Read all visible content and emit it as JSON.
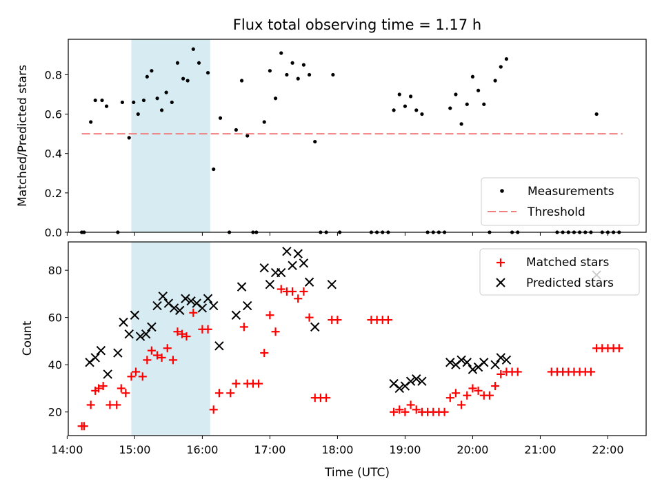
{
  "chart_data": [
    {
      "type": "scatter",
      "title": "Flux total observing time = 1.17 h",
      "ylabel": "Matched/Predicted stars",
      "xlabel": "",
      "xlim": [
        "14:01",
        "22:34"
      ],
      "ylim": [
        0,
        0.98
      ],
      "grid": false,
      "legend_position": "lower-right",
      "x_ticks": [
        "14:00",
        "15:00",
        "16:00",
        "17:00",
        "18:00",
        "19:00",
        "20:00",
        "21:00",
        "22:00"
      ],
      "y_ticks": [
        "0.0",
        "0.2",
        "0.4",
        "0.6",
        "0.8"
      ],
      "shaded_span": [
        "14:57",
        "16:07"
      ],
      "series": [
        {
          "name": "Measurements",
          "marker": "dot",
          "color": "#000000",
          "points": [
            [
              "14:13",
              0
            ],
            [
              "14:15",
              0
            ],
            [
              "14:21",
              0.56
            ],
            [
              "14:25",
              0.67
            ],
            [
              "14:31",
              0.67
            ],
            [
              "14:35",
              0.64
            ],
            [
              "14:45",
              0
            ],
            [
              "14:49",
              0.66
            ],
            [
              "14:55",
              0.48
            ],
            [
              "14:59",
              0.66
            ],
            [
              "15:03",
              0.6
            ],
            [
              "15:08",
              0.67
            ],
            [
              "15:11",
              0.79
            ],
            [
              "15:15",
              0.82
            ],
            [
              "15:20",
              0.68
            ],
            [
              "15:24",
              0.62
            ],
            [
              "15:28",
              0.71
            ],
            [
              "15:33",
              0.66
            ],
            [
              "15:38",
              0.86
            ],
            [
              "15:43",
              0.78
            ],
            [
              "15:47",
              0.77
            ],
            [
              "15:52",
              0.93
            ],
            [
              "15:57",
              0.86
            ],
            [
              "16:05",
              0.81
            ],
            [
              "16:10",
              0.32
            ],
            [
              "16:16",
              0.58
            ],
            [
              "16:24",
              0
            ],
            [
              "16:30",
              0.52
            ],
            [
              "16:35",
              0.77
            ],
            [
              "16:40",
              0.49
            ],
            [
              "16:45",
              0
            ],
            [
              "16:48",
              0
            ],
            [
              "16:55",
              0.56
            ],
            [
              "17:00",
              0.82
            ],
            [
              "17:05",
              0.68
            ],
            [
              "17:10",
              0.91
            ],
            [
              "17:15",
              0.8
            ],
            [
              "17:20",
              0.86
            ],
            [
              "17:25",
              0.78
            ],
            [
              "17:30",
              0.85
            ],
            [
              "17:35",
              0.8
            ],
            [
              "17:40",
              0.46
            ],
            [
              "17:45",
              0
            ],
            [
              "17:50",
              0
            ],
            [
              "17:56",
              0.8
            ],
            [
              "18:02",
              0
            ],
            [
              "18:30",
              0
            ],
            [
              "18:35",
              0
            ],
            [
              "18:40",
              0
            ],
            [
              "18:45",
              0
            ],
            [
              "18:50",
              0.62
            ],
            [
              "18:55",
              0.7
            ],
            [
              "19:00",
              0.64
            ],
            [
              "19:05",
              0.69
            ],
            [
              "19:10",
              0.62
            ],
            [
              "19:15",
              0.6
            ],
            [
              "19:20",
              0
            ],
            [
              "19:25",
              0
            ],
            [
              "19:30",
              0
            ],
            [
              "19:35",
              0
            ],
            [
              "19:40",
              0.63
            ],
            [
              "19:45",
              0.7
            ],
            [
              "19:50",
              0.55
            ],
            [
              "19:55",
              0.65
            ],
            [
              "20:00",
              0.79
            ],
            [
              "20:05",
              0.72
            ],
            [
              "20:10",
              0.65
            ],
            [
              "20:15",
              0
            ],
            [
              "20:20",
              0.77
            ],
            [
              "20:25",
              0.84
            ],
            [
              "20:30",
              0.88
            ],
            [
              "20:35",
              0
            ],
            [
              "20:40",
              0
            ],
            [
              "21:15",
              0
            ],
            [
              "21:20",
              0
            ],
            [
              "21:25",
              0
            ],
            [
              "21:30",
              0
            ],
            [
              "21:35",
              0
            ],
            [
              "21:40",
              0
            ],
            [
              "21:45",
              0
            ],
            [
              "21:50",
              0.6
            ],
            [
              "21:55",
              0
            ],
            [
              "22:00",
              0
            ],
            [
              "22:05",
              0
            ],
            [
              "22:10",
              0
            ]
          ]
        },
        {
          "name": "Threshold",
          "marker": "dashed-line",
          "color": "#f08080",
          "x_range": [
            "14:13",
            "22:13"
          ],
          "y": 0.5
        }
      ]
    },
    {
      "type": "scatter",
      "title": "",
      "xlabel": "Time (UTC)",
      "ylabel": "Count",
      "xlim": [
        "14:01",
        "22:34"
      ],
      "ylim": [
        10,
        92
      ],
      "grid": false,
      "legend_position": "top-right",
      "x_ticks": [
        "14:00",
        "15:00",
        "16:00",
        "17:00",
        "18:00",
        "19:00",
        "20:00",
        "21:00",
        "22:00"
      ],
      "y_ticks": [
        "20",
        "40",
        "60",
        "80"
      ],
      "shaded_span": [
        "14:57",
        "16:07"
      ],
      "series": [
        {
          "name": "Matched stars",
          "marker": "plus",
          "color": "#ff0000",
          "points": [
            [
              "14:13",
              14
            ],
            [
              "14:15",
              14
            ],
            [
              "14:21",
              23
            ],
            [
              "14:25",
              29
            ],
            [
              "14:28",
              30
            ],
            [
              "14:32",
              31
            ],
            [
              "14:38",
              23
            ],
            [
              "14:44",
              23
            ],
            [
              "14:48",
              30
            ],
            [
              "14:52",
              28
            ],
            [
              "14:57",
              35
            ],
            [
              "15:01",
              37
            ],
            [
              "15:07",
              35
            ],
            [
              "15:11",
              42
            ],
            [
              "15:15",
              46
            ],
            [
              "15:20",
              44
            ],
            [
              "15:24",
              43
            ],
            [
              "15:29",
              47
            ],
            [
              "15:34",
              42
            ],
            [
              "15:38",
              54
            ],
            [
              "15:42",
              53
            ],
            [
              "15:46",
              52
            ],
            [
              "15:52",
              62
            ],
            [
              "16:00",
              55
            ],
            [
              "16:05",
              55
            ],
            [
              "16:10",
              21
            ],
            [
              "16:15",
              28
            ],
            [
              "16:25",
              28
            ],
            [
              "16:30",
              32
            ],
            [
              "16:37",
              56
            ],
            [
              "16:40",
              32
            ],
            [
              "16:45",
              32
            ],
            [
              "16:50",
              32
            ],
            [
              "16:55",
              45
            ],
            [
              "17:00",
              61
            ],
            [
              "17:05",
              54
            ],
            [
              "17:10",
              72
            ],
            [
              "17:15",
              71
            ],
            [
              "17:20",
              71
            ],
            [
              "17:25",
              68
            ],
            [
              "17:30",
              71
            ],
            [
              "17:35",
              60
            ],
            [
              "17:40",
              26
            ],
            [
              "17:45",
              26
            ],
            [
              "17:50",
              26
            ],
            [
              "17:55",
              59
            ],
            [
              "18:00",
              59
            ],
            [
              "18:30",
              59
            ],
            [
              "18:35",
              59
            ],
            [
              "18:40",
              59
            ],
            [
              "18:45",
              59
            ],
            [
              "18:50",
              20
            ],
            [
              "18:55",
              21
            ],
            [
              "19:00",
              20
            ],
            [
              "19:05",
              23
            ],
            [
              "19:10",
              21
            ],
            [
              "19:15",
              20
            ],
            [
              "19:20",
              20
            ],
            [
              "19:25",
              20
            ],
            [
              "19:30",
              20
            ],
            [
              "19:35",
              20
            ],
            [
              "19:40",
              26
            ],
            [
              "19:45",
              28
            ],
            [
              "19:50",
              23
            ],
            [
              "19:55",
              27
            ],
            [
              "20:00",
              30
            ],
            [
              "20:05",
              29
            ],
            [
              "20:10",
              27
            ],
            [
              "20:15",
              27
            ],
            [
              "20:20",
              31
            ],
            [
              "20:25",
              36
            ],
            [
              "20:30",
              37
            ],
            [
              "20:35",
              37
            ],
            [
              "20:40",
              37
            ],
            [
              "21:10",
              37
            ],
            [
              "21:15",
              37
            ],
            [
              "21:20",
              37
            ],
            [
              "21:25",
              37
            ],
            [
              "21:30",
              37
            ],
            [
              "21:35",
              37
            ],
            [
              "21:40",
              37
            ],
            [
              "21:45",
              37
            ],
            [
              "21:50",
              47
            ],
            [
              "21:55",
              47
            ],
            [
              "22:00",
              47
            ],
            [
              "22:05",
              47
            ],
            [
              "22:10",
              47
            ]
          ]
        },
        {
          "name": "Predicted stars",
          "marker": "x",
          "color": "#000000",
          "points": [
            [
              "14:20",
              41
            ],
            [
              "14:25",
              43
            ],
            [
              "14:30",
              46
            ],
            [
              "14:36",
              36
            ],
            [
              "14:45",
              45
            ],
            [
              "14:50",
              58
            ],
            [
              "14:55",
              53
            ],
            [
              "15:00",
              61
            ],
            [
              "15:05",
              52
            ],
            [
              "15:10",
              53
            ],
            [
              "15:15",
              56
            ],
            [
              "15:20",
              65
            ],
            [
              "15:25",
              69
            ],
            [
              "15:30",
              66
            ],
            [
              "15:35",
              64
            ],
            [
              "15:40",
              63
            ],
            [
              "15:45",
              68
            ],
            [
              "15:50",
              67
            ],
            [
              "15:55",
              66
            ],
            [
              "16:00",
              64
            ],
            [
              "16:05",
              68
            ],
            [
              "16:10",
              65
            ],
            [
              "16:15",
              48
            ],
            [
              "16:30",
              61
            ],
            [
              "16:35",
              73
            ],
            [
              "16:40",
              65
            ],
            [
              "16:55",
              81
            ],
            [
              "17:00",
              74
            ],
            [
              "17:05",
              79
            ],
            [
              "17:10",
              79
            ],
            [
              "17:15",
              88
            ],
            [
              "17:20",
              82
            ],
            [
              "17:25",
              87
            ],
            [
              "17:30",
              83
            ],
            [
              "17:35",
              75
            ],
            [
              "17:40",
              56
            ],
            [
              "17:55",
              74
            ],
            [
              "18:50",
              32
            ],
            [
              "18:55",
              30
            ],
            [
              "19:00",
              31
            ],
            [
              "19:05",
              33
            ],
            [
              "19:10",
              34
            ],
            [
              "19:15",
              33
            ],
            [
              "19:40",
              41
            ],
            [
              "19:45",
              40
            ],
            [
              "19:50",
              42
            ],
            [
              "19:55",
              41
            ],
            [
              "20:00",
              38
            ],
            [
              "20:05",
              39
            ],
            [
              "20:10",
              41
            ],
            [
              "20:20",
              40
            ],
            [
              "20:25",
              43
            ],
            [
              "20:30",
              42
            ],
            [
              "21:50",
              78
            ]
          ]
        }
      ]
    }
  ]
}
